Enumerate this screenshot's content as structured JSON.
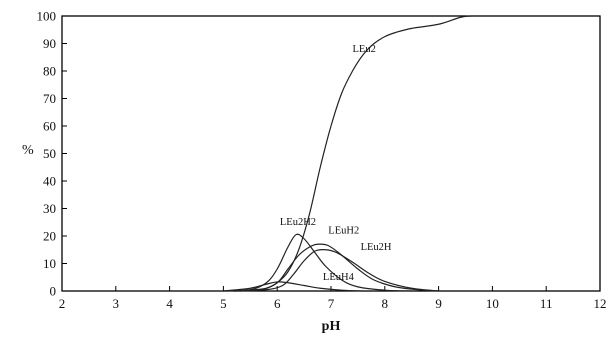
{
  "chart_data": {
    "type": "line",
    "title": "",
    "xlabel": "pH",
    "ylabel": "%",
    "xlim": [
      2,
      12
    ],
    "ylim": [
      0,
      100
    ],
    "xticks": [
      2,
      3,
      4,
      5,
      6,
      7,
      8,
      9,
      10,
      11,
      12
    ],
    "yticks": [
      0,
      10,
      20,
      30,
      40,
      50,
      60,
      70,
      80,
      90,
      100
    ],
    "grid": false,
    "legend": "none",
    "line_color": "#222222",
    "series": [
      {
        "name": "LEu2",
        "points": [
          [
            5.2,
            0
          ],
          [
            5.6,
            0.5
          ],
          [
            5.8,
            1
          ],
          [
            6.0,
            3
          ],
          [
            6.2,
            7
          ],
          [
            6.4,
            15
          ],
          [
            6.6,
            28
          ],
          [
            6.8,
            45
          ],
          [
            7.0,
            60
          ],
          [
            7.2,
            72
          ],
          [
            7.4,
            80
          ],
          [
            7.6,
            86
          ],
          [
            7.8,
            90
          ],
          [
            8.0,
            92.5
          ],
          [
            8.2,
            94
          ],
          [
            8.5,
            95.5
          ],
          [
            9.0,
            97
          ],
          [
            9.4,
            99.5
          ],
          [
            9.6,
            100
          ]
        ]
      },
      {
        "name": "LEu2H2",
        "points": [
          [
            5.0,
            0
          ],
          [
            5.5,
            0.5
          ],
          [
            5.8,
            3
          ],
          [
            6.0,
            8
          ],
          [
            6.2,
            16
          ],
          [
            6.35,
            20.5
          ],
          [
            6.5,
            19
          ],
          [
            6.7,
            14
          ],
          [
            6.9,
            9
          ],
          [
            7.2,
            4
          ],
          [
            7.5,
            1.5
          ],
          [
            8.0,
            0.3
          ],
          [
            8.5,
            0
          ]
        ]
      },
      {
        "name": "LEuH2",
        "points": [
          [
            5.2,
            0
          ],
          [
            5.7,
            0.5
          ],
          [
            6.0,
            3
          ],
          [
            6.2,
            8
          ],
          [
            6.4,
            13
          ],
          [
            6.6,
            16
          ],
          [
            6.75,
            17
          ],
          [
            6.95,
            16.5
          ],
          [
            7.2,
            13
          ],
          [
            7.5,
            8
          ],
          [
            7.8,
            4
          ],
          [
            8.2,
            1.5
          ],
          [
            8.6,
            0.5
          ],
          [
            9.0,
            0
          ]
        ]
      },
      {
        "name": "LEu2H",
        "points": [
          [
            5.3,
            0
          ],
          [
            5.8,
            0.5
          ],
          [
            6.1,
            2
          ],
          [
            6.3,
            6
          ],
          [
            6.5,
            11
          ],
          [
            6.7,
            14.5
          ],
          [
            6.9,
            15
          ],
          [
            7.1,
            14
          ],
          [
            7.4,
            10.5
          ],
          [
            7.7,
            6.5
          ],
          [
            8.0,
            3.5
          ],
          [
            8.5,
            1
          ],
          [
            9.0,
            0
          ]
        ]
      },
      {
        "name": "LEuH4",
        "points": [
          [
            5.0,
            0
          ],
          [
            5.5,
            1
          ],
          [
            5.8,
            2.5
          ],
          [
            6.0,
            3.3
          ],
          [
            6.2,
            3
          ],
          [
            6.5,
            2
          ],
          [
            6.8,
            1
          ],
          [
            7.2,
            0.3
          ],
          [
            7.6,
            0
          ]
        ]
      }
    ],
    "annotations": [
      {
        "text": "LEu2",
        "x": 7.4,
        "y": 87
      },
      {
        "text": "LEu2H2",
        "x": 6.05,
        "y": 24
      },
      {
        "text": "LEuH2",
        "x": 6.95,
        "y": 21
      },
      {
        "text": "LEu2H",
        "x": 7.55,
        "y": 15
      },
      {
        "text": "LEuH4",
        "x": 6.85,
        "y": 4
      }
    ]
  }
}
